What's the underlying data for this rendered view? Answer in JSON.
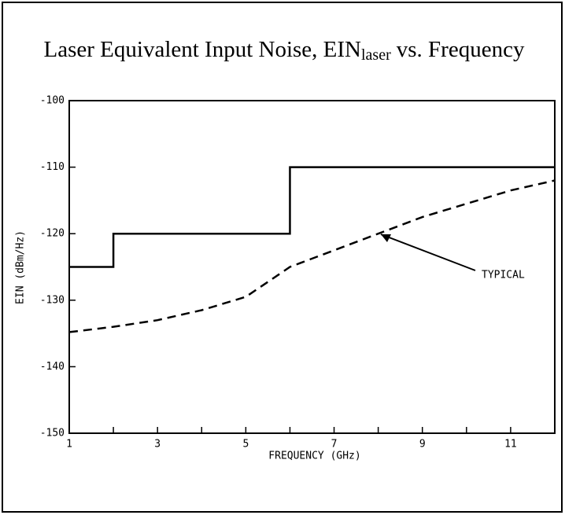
{
  "chart_data": {
    "type": "line",
    "title": "Laser Equivalent Input Noise, EIN",
    "title_subscript": "laser",
    "title_suffix": "vs. Frequency",
    "x_label": "FREQUENCY (GHz)",
    "y_label": "EIN (dBm/Hz)",
    "xlim": [
      1,
      12
    ],
    "xticks": [
      1,
      3,
      5,
      7,
      9,
      11
    ],
    "xminor_ticks": [
      2,
      4,
      6,
      8,
      10,
      12
    ],
    "ylim": [
      -150,
      -100
    ],
    "yticks": [
      -150,
      -140,
      -130,
      -120,
      -110,
      -100
    ],
    "series": [
      {
        "color": "#000000",
        "dash": false,
        "x": [
          1,
          2,
          2,
          6,
          6,
          12
        ],
        "values": [
          -125,
          -125,
          -120,
          -120,
          -110,
          -110
        ]
      },
      {
        "name": "TYPICAL",
        "color": "#000000",
        "dash": true,
        "x": [
          1,
          2,
          3,
          4,
          5,
          6,
          7,
          8,
          9,
          10,
          11,
          12
        ],
        "values": [
          -134.8,
          -134,
          -133,
          -131.5,
          -129.5,
          -125,
          -122.5,
          -120,
          -117.5,
          -115.5,
          -113.5,
          -112
        ]
      }
    ]
  }
}
